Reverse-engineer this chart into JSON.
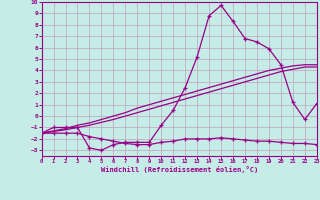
{
  "xlabel": "Windchill (Refroidissement éolien,°C)",
  "background_color": "#c5ece6",
  "grid_color": "#c0a8be",
  "line_color": "#990088",
  "spine_color": "#880077",
  "xlim": [
    0,
    23
  ],
  "ylim": [
    -3.5,
    10
  ],
  "xticks": [
    0,
    1,
    2,
    3,
    4,
    5,
    6,
    7,
    8,
    9,
    10,
    11,
    12,
    13,
    14,
    15,
    16,
    17,
    18,
    19,
    20,
    21,
    22,
    23
  ],
  "yticks": [
    -3,
    -2,
    -1,
    0,
    1,
    2,
    3,
    4,
    5,
    6,
    7,
    8,
    9,
    10
  ],
  "x": [
    0,
    1,
    2,
    3,
    4,
    5,
    6,
    7,
    8,
    9,
    10,
    11,
    12,
    13,
    14,
    15,
    16,
    17,
    18,
    19,
    20,
    21,
    22,
    23
  ],
  "main_line": [
    -1.5,
    -1.0,
    -1.0,
    -1.0,
    -2.8,
    -3.0,
    -2.5,
    -2.3,
    -2.3,
    -2.3,
    -0.8,
    0.5,
    2.5,
    5.2,
    8.8,
    9.7,
    8.3,
    6.8,
    6.5,
    5.9,
    4.5,
    1.2,
    -0.3,
    1.1
  ],
  "lower_line": [
    -1.5,
    -1.5,
    -1.5,
    -1.5,
    -1.8,
    -2.0,
    -2.2,
    -2.4,
    -2.5,
    -2.5,
    -2.3,
    -2.2,
    -2.0,
    -2.0,
    -2.0,
    -1.9,
    -2.0,
    -2.1,
    -2.2,
    -2.2,
    -2.3,
    -2.4,
    -2.4,
    -2.5
  ],
  "diag_line1": [
    -1.5,
    -1.3,
    -1.1,
    -0.8,
    -0.6,
    -0.3,
    0.0,
    0.3,
    0.7,
    1.0,
    1.3,
    1.6,
    1.9,
    2.2,
    2.5,
    2.8,
    3.1,
    3.4,
    3.7,
    4.0,
    4.2,
    4.4,
    4.5,
    4.5
  ],
  "diag_line2": [
    -1.5,
    -1.35,
    -1.2,
    -1.0,
    -0.8,
    -0.55,
    -0.3,
    0.0,
    0.3,
    0.6,
    0.9,
    1.2,
    1.5,
    1.8,
    2.1,
    2.4,
    2.7,
    3.0,
    3.3,
    3.6,
    3.9,
    4.1,
    4.3,
    4.3
  ]
}
